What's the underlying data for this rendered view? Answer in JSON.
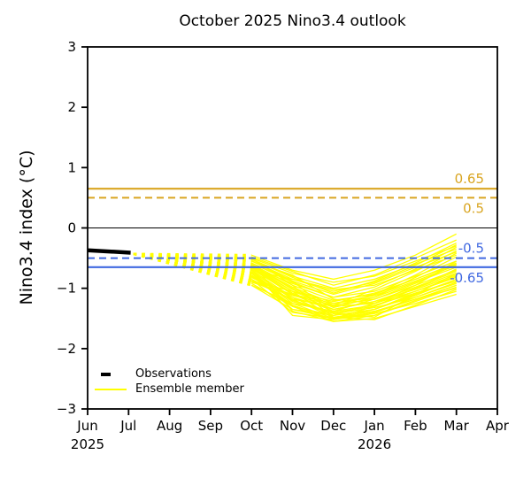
{
  "title": "October 2025 Nino3.4 outlook",
  "colors": {
    "warm_threshold": "#D9A521",
    "cold_threshold": "#4169E1",
    "ensemble": "#FFFF00",
    "observations": "#000000",
    "axis": "#000000"
  },
  "legend": {
    "items": [
      {
        "label": "Observations"
      },
      {
        "label": "Ensemble member"
      }
    ]
  },
  "chart_data": {
    "type": "line",
    "title": "October 2025 Nino3.4 outlook",
    "xlabel": "",
    "ylabel": "Nino3.4 index (°C)",
    "ylim": [
      -3,
      3
    ],
    "xlim_months": [
      0,
      10
    ],
    "grid": false,
    "legend_position": "lower-left",
    "x_categories": [
      "Jun",
      "Jul",
      "Aug",
      "Sep",
      "Oct",
      "Nov",
      "Dec",
      "Jan",
      "Feb",
      "Mar",
      "Apr"
    ],
    "x_year_labels": [
      {
        "index": 0,
        "year": "2025"
      },
      {
        "index": 7,
        "year": "2026"
      }
    ],
    "ytick_values": [
      3,
      2,
      1,
      0,
      -1,
      -2,
      -3
    ],
    "ytick_labels": [
      "3",
      "2",
      "1",
      "0",
      "−1",
      "−2",
      "−3"
    ],
    "reference_lines": [
      {
        "value": 0.65,
        "label": "0.65",
        "style": "solid",
        "color": "#D9A521",
        "width": 2.2,
        "label_side": "above"
      },
      {
        "value": 0.5,
        "label": "0.5",
        "style": "dashed",
        "color": "#D9A521",
        "width": 2,
        "label_side": "below"
      },
      {
        "value": 0,
        "label": "",
        "style": "solid",
        "color": "#000000",
        "width": 1,
        "label_side": "none"
      },
      {
        "value": -0.5,
        "label": "-0.5",
        "style": "dashed",
        "color": "#4169E1",
        "width": 2,
        "label_side": "above"
      },
      {
        "value": -0.65,
        "label": "-0.65",
        "style": "solid",
        "color": "#4169E1",
        "width": 2.2,
        "label_side": "below"
      }
    ],
    "observations": {
      "name": "Observations",
      "x_months": [
        0,
        1.05
      ],
      "values": [
        -0.37,
        -0.41
      ]
    },
    "ensemble": {
      "name": "Ensemble member",
      "connector_start": {
        "x_month": 1.12,
        "value": -0.43
      },
      "x_months": [
        4,
        5,
        6,
        7,
        8,
        9
      ],
      "x_month_names": [
        "Oct",
        "Nov",
        "Dec",
        "Jan",
        "Feb",
        "Mar"
      ],
      "members": [
        [
          -0.5,
          -0.75,
          -0.9,
          -0.8,
          -0.55,
          -0.3
        ],
        [
          -0.55,
          -0.85,
          -1.02,
          -0.95,
          -0.7,
          -0.45
        ],
        [
          -0.6,
          -0.95,
          -1.2,
          -1.1,
          -0.85,
          -0.6
        ],
        [
          -0.65,
          -1.05,
          -1.3,
          -1.25,
          -1.0,
          -0.75
        ],
        [
          -0.7,
          -1.15,
          -1.45,
          -1.35,
          -1.1,
          -0.85
        ],
        [
          -0.75,
          -1.25,
          -1.5,
          -1.45,
          -1.2,
          -0.95
        ],
        [
          -0.8,
          -1.3,
          -1.55,
          -1.5,
          -1.3,
          -1.1
        ],
        [
          -0.85,
          -1.2,
          -1.4,
          -1.3,
          -1.05,
          -0.8
        ],
        [
          -0.9,
          -1.1,
          -1.25,
          -1.15,
          -0.9,
          -0.65
        ],
        [
          -0.95,
          -1.35,
          -1.5,
          -1.4,
          -1.15,
          -0.9
        ],
        [
          -0.45,
          -0.7,
          -0.85,
          -0.7,
          -0.45,
          -0.1
        ],
        [
          -0.52,
          -0.8,
          -1.0,
          -0.85,
          -0.6,
          -0.35
        ],
        [
          -0.58,
          -0.9,
          -1.15,
          -1.05,
          -0.8,
          -0.55
        ],
        [
          -0.63,
          -1.0,
          -1.28,
          -1.18,
          -0.95,
          -0.7
        ],
        [
          -0.68,
          -1.1,
          -1.38,
          -1.28,
          -1.08,
          -0.88
        ],
        [
          -0.72,
          -1.18,
          -1.48,
          -1.38,
          -1.18,
          -1.0
        ],
        [
          -0.78,
          -1.28,
          -1.52,
          -1.42,
          -1.25,
          -1.05
        ],
        [
          -0.82,
          -1.15,
          -1.35,
          -1.22,
          -0.98,
          -0.72
        ],
        [
          -0.88,
          -1.05,
          -1.22,
          -1.08,
          -0.85,
          -0.58
        ],
        [
          -0.92,
          -1.3,
          -1.45,
          -1.35,
          -1.12,
          -0.85
        ],
        [
          -0.48,
          -0.72,
          -0.95,
          -0.78,
          -0.5,
          -0.2
        ],
        [
          -0.54,
          -0.88,
          -1.1,
          -0.92,
          -0.65,
          -0.4
        ],
        [
          -0.62,
          -0.98,
          -1.25,
          -1.12,
          -0.88,
          -0.62
        ],
        [
          -0.66,
          -1.08,
          -1.35,
          -1.22,
          -1.02,
          -0.78
        ],
        [
          -0.74,
          -1.22,
          -1.42,
          -1.32,
          -1.15,
          -0.92
        ],
        [
          -0.58,
          -1.38,
          -1.55,
          -1.45,
          -1.22,
          -0.98
        ],
        [
          -0.5,
          -0.95,
          -1.48,
          -1.52,
          -1.28,
          -1.02
        ],
        [
          -0.85,
          -1.4,
          -1.5,
          -1.3,
          -1.0,
          -0.68
        ],
        [
          -0.7,
          -0.85,
          -1.05,
          -0.9,
          -0.62,
          -0.28
        ],
        [
          -0.6,
          -1.02,
          -1.32,
          -1.15,
          -0.82,
          -0.48
        ],
        [
          -0.55,
          -0.78,
          -1.18,
          -1.25,
          -0.95,
          -0.55
        ],
        [
          -0.8,
          -1.12,
          -1.28,
          -1.02,
          -0.72,
          -0.38
        ],
        [
          -0.95,
          -1.25,
          -1.38,
          -1.18,
          -0.92,
          -0.6
        ],
        [
          -0.65,
          -0.92,
          -1.15,
          -0.98,
          -0.68,
          -0.32
        ],
        [
          -0.75,
          -1.35,
          -1.45,
          -1.25,
          -1.05,
          -0.82
        ],
        [
          -0.52,
          -0.82,
          -1.08,
          -0.88,
          -0.58,
          -0.25
        ],
        [
          -0.68,
          -1.45,
          -1.52,
          -1.4,
          -1.18,
          -0.95
        ],
        [
          -0.58,
          -0.88,
          -1.42,
          -1.48,
          -1.1,
          -0.75
        ],
        [
          -0.88,
          -1.18,
          -1.3,
          -1.1,
          -0.78,
          -0.42
        ],
        [
          -0.62,
          -1.05,
          -1.5,
          -1.35,
          -1.08,
          -0.88
        ]
      ]
    }
  }
}
